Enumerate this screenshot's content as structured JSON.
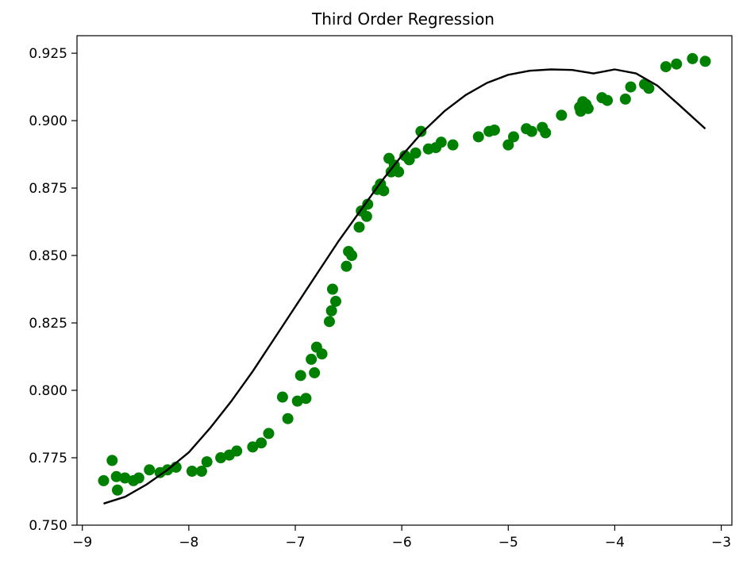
{
  "chart_data": {
    "type": "scatter",
    "title": "Third Order Regression",
    "xlabel": "",
    "ylabel": "",
    "xlim": [
      -9.05,
      -2.9
    ],
    "ylim": [
      0.75,
      0.9315
    ],
    "x_ticks": [
      -9,
      -8,
      -7,
      -6,
      -5,
      -4,
      -3
    ],
    "x_tick_labels": [
      "−9",
      "−8",
      "−7",
      "−6",
      "−5",
      "−4",
      "−3"
    ],
    "y_ticks": [
      0.75,
      0.775,
      0.8,
      0.825,
      0.85,
      0.875,
      0.9,
      0.925
    ],
    "y_tick_labels": [
      "0.750",
      "0.775",
      "0.800",
      "0.825",
      "0.850",
      "0.875",
      "0.900",
      "0.925"
    ],
    "grid": false,
    "series": [
      {
        "kind": "scatter",
        "color": "#008000",
        "points": [
          [
            -8.8,
            0.7665
          ],
          [
            -8.72,
            0.774
          ],
          [
            -8.68,
            0.768
          ],
          [
            -8.67,
            0.763
          ],
          [
            -8.6,
            0.7675
          ],
          [
            -8.52,
            0.7665
          ],
          [
            -8.47,
            0.7675
          ],
          [
            -8.37,
            0.7705
          ],
          [
            -8.27,
            0.7695
          ],
          [
            -8.2,
            0.7705
          ],
          [
            -8.12,
            0.7715
          ],
          [
            -7.97,
            0.77
          ],
          [
            -7.88,
            0.77
          ],
          [
            -7.83,
            0.7735
          ],
          [
            -7.7,
            0.775
          ],
          [
            -7.62,
            0.776
          ],
          [
            -7.55,
            0.7775
          ],
          [
            -7.4,
            0.779
          ],
          [
            -7.32,
            0.7805
          ],
          [
            -7.25,
            0.784
          ],
          [
            -7.12,
            0.7975
          ],
          [
            -7.07,
            0.7895
          ],
          [
            -6.98,
            0.796
          ],
          [
            -6.95,
            0.8055
          ],
          [
            -6.9,
            0.797
          ],
          [
            -6.85,
            0.8115
          ],
          [
            -6.82,
            0.8065
          ],
          [
            -6.8,
            0.816
          ],
          [
            -6.75,
            0.8135
          ],
          [
            -6.68,
            0.8255
          ],
          [
            -6.66,
            0.8295
          ],
          [
            -6.65,
            0.8375
          ],
          [
            -6.62,
            0.833
          ],
          [
            -6.52,
            0.846
          ],
          [
            -6.5,
            0.8515
          ],
          [
            -6.47,
            0.85
          ],
          [
            -6.4,
            0.8605
          ],
          [
            -6.38,
            0.8665
          ],
          [
            -6.33,
            0.8645
          ],
          [
            -6.32,
            0.869
          ],
          [
            -6.23,
            0.8745
          ],
          [
            -6.2,
            0.8765
          ],
          [
            -6.17,
            0.874
          ],
          [
            -6.12,
            0.886
          ],
          [
            -6.1,
            0.881
          ],
          [
            -6.07,
            0.8835
          ],
          [
            -6.03,
            0.881
          ],
          [
            -5.97,
            0.887
          ],
          [
            -5.93,
            0.8855
          ],
          [
            -5.87,
            0.888
          ],
          [
            -5.82,
            0.896
          ],
          [
            -5.75,
            0.8895
          ],
          [
            -5.68,
            0.89
          ],
          [
            -5.63,
            0.892
          ],
          [
            -5.52,
            0.891
          ],
          [
            -5.28,
            0.894
          ],
          [
            -5.18,
            0.896
          ],
          [
            -5.13,
            0.8965
          ],
          [
            -5.0,
            0.891
          ],
          [
            -4.95,
            0.894
          ],
          [
            -4.83,
            0.897
          ],
          [
            -4.78,
            0.896
          ],
          [
            -4.68,
            0.8975
          ],
          [
            -4.65,
            0.8955
          ],
          [
            -4.5,
            0.902
          ],
          [
            -4.33,
            0.905
          ],
          [
            -4.32,
            0.9035
          ],
          [
            -4.3,
            0.907
          ],
          [
            -4.27,
            0.906
          ],
          [
            -4.25,
            0.9045
          ],
          [
            -4.12,
            0.9085
          ],
          [
            -4.07,
            0.9075
          ],
          [
            -3.9,
            0.908
          ],
          [
            -3.85,
            0.9125
          ],
          [
            -3.72,
            0.9135
          ],
          [
            -3.68,
            0.912
          ],
          [
            -3.52,
            0.92
          ],
          [
            -3.42,
            0.921
          ],
          [
            -3.27,
            0.923
          ],
          [
            -3.15,
            0.922
          ]
        ]
      },
      {
        "kind": "line",
        "color": "#000000",
        "points": [
          [
            -8.8,
            0.758
          ],
          [
            -8.6,
            0.7605
          ],
          [
            -8.4,
            0.765
          ],
          [
            -8.2,
            0.7705
          ],
          [
            -8.0,
            0.777
          ],
          [
            -7.8,
            0.786
          ],
          [
            -7.6,
            0.796
          ],
          [
            -7.4,
            0.807
          ],
          [
            -7.2,
            0.819
          ],
          [
            -7.0,
            0.831
          ],
          [
            -6.8,
            0.843
          ],
          [
            -6.6,
            0.855
          ],
          [
            -6.4,
            0.866
          ],
          [
            -6.2,
            0.877
          ],
          [
            -6.0,
            0.887
          ],
          [
            -5.8,
            0.896
          ],
          [
            -5.6,
            0.9035
          ],
          [
            -5.4,
            0.9095
          ],
          [
            -5.2,
            0.914
          ],
          [
            -5.0,
            0.917
          ],
          [
            -4.8,
            0.9185
          ],
          [
            -4.6,
            0.919
          ],
          [
            -4.4,
            0.9188
          ],
          [
            -4.2,
            0.9175
          ],
          [
            -4.0,
            0.919
          ],
          [
            -3.8,
            0.9175
          ],
          [
            -3.6,
            0.913
          ],
          [
            -3.4,
            0.906
          ],
          [
            -3.15,
            0.897
          ]
        ]
      }
    ]
  }
}
